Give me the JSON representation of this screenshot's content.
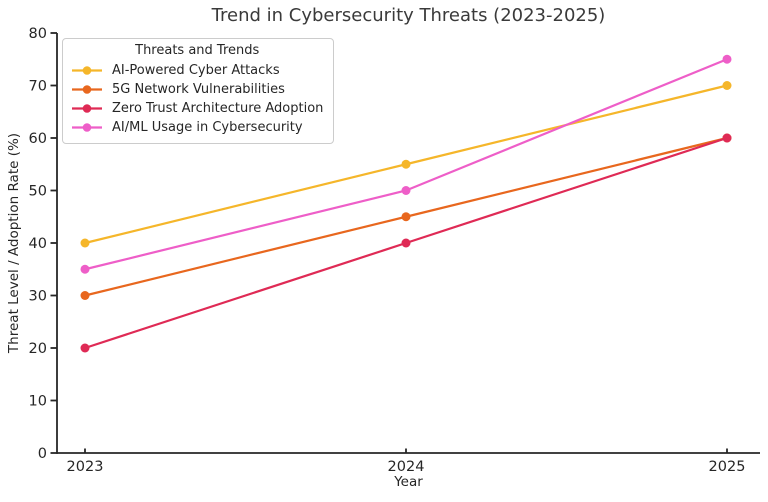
{
  "chart_data": {
    "type": "line",
    "title": "Trend in Cybersecurity Threats (2023-2025)",
    "xlabel": "Year",
    "ylabel": "Threat Level / Adoption Rate (%)",
    "legend_title": "Threats and Trends",
    "legend_position": "upper-left",
    "grid": false,
    "categories": [
      "2023",
      "2024",
      "2025"
    ],
    "x": [
      2023,
      2024,
      2025
    ],
    "y_ticks": [
      0,
      10,
      20,
      30,
      40,
      50,
      60,
      70,
      80
    ],
    "ylim": [
      0,
      80
    ],
    "series": [
      {
        "name": "AI-Powered Cyber Attacks",
        "color": "#F5B62A",
        "values": [
          40,
          55,
          70
        ]
      },
      {
        "name": "5G Network Vulnerabilities",
        "color": "#E8671E",
        "values": [
          30,
          45,
          60
        ]
      },
      {
        "name": "Zero Trust Architecture Adoption",
        "color": "#DF2A55",
        "values": [
          20,
          40,
          60
        ]
      },
      {
        "name": "AI/ML Usage in Cybersecurity",
        "color": "#EE5EC8",
        "values": [
          35,
          50,
          75
        ]
      }
    ],
    "text_color": "#262626",
    "spine_color": "#262626"
  }
}
